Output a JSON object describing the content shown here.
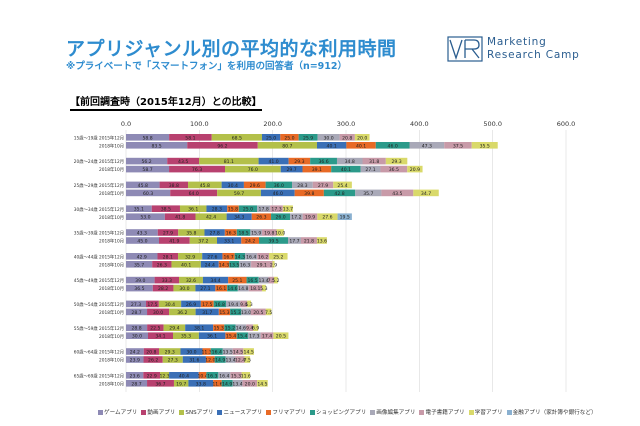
{
  "header": {
    "title": "アプリジャンル別の平均的な利用時間",
    "subtitle": "※プライベートで「スマートフォン」を利用の回答者（n=912）",
    "section_heading": "【前回調査時（2015年12月）との比較】"
  },
  "logo": {
    "line1": "Marketing",
    "line2": "Research Camp",
    "color": "#2a5d8f"
  },
  "chart_data": {
    "type": "bar",
    "orientation": "horizontal",
    "stacked": true,
    "xlim": [
      0,
      600
    ],
    "xticks": [
      "0.0",
      "100.0",
      "200.0",
      "300.0",
      "400.0",
      "500.0",
      "600.0"
    ],
    "xtick_values": [
      0,
      100,
      200,
      300,
      400,
      500,
      600
    ],
    "grid": true,
    "legend_position": "bottom",
    "categories": [
      "15歳～19歳 2015年12月",
      "2018年10月",
      "20歳～24歳 2015年12月",
      "2018年10月",
      "25歳～29歳 2015年12月",
      "2018年10月",
      "30歳～34歳 2015年12月",
      "2018年10月",
      "35歳～39歳 2015年12月",
      "2018年10月",
      "40歳～44歳 2015年12月",
      "2018年10月",
      "45歳～49歳 2015年12月",
      "2018年10月",
      "50歳～54歳 2015年12月",
      "2018年10月",
      "55歳～59歳 2015年12月",
      "2018年10月",
      "60歳～64歳 2015年12月",
      "2018年10月",
      "65歳～69歳 2015年12月",
      "2018年10月"
    ],
    "series": [
      {
        "name": "ゲームアプリ",
        "color": "#8e8ab5",
        "values": [
          58.8,
          83.5,
          56.2,
          58.7,
          45.8,
          60.3,
          35.1,
          53.0,
          43.3,
          45.0,
          42.9,
          35.7,
          39.0,
          36.5,
          27.3,
          28.7,
          28.8,
          30.0,
          24.2,
          23.9,
          23.6,
          28.7
        ]
      },
      {
        "name": "動画アプリ",
        "color": "#b8416f",
        "values": [
          58.1,
          96.2,
          43.5,
          76.3,
          38.8,
          64.0,
          38.5,
          41.8,
          27.9,
          41.9,
          28.1,
          26.3,
          33.3,
          28.2,
          17.5,
          30.0,
          22.5,
          34.1,
          20.8,
          26.2,
          22.9,
          36.7
        ]
      },
      {
        "name": "SNSアプリ",
        "color": "#b3c04a",
        "values": [
          68.5,
          80.7,
          81.1,
          76.0,
          45.8,
          59.7,
          36.1,
          42.4,
          35.8,
          37.2,
          32.9,
          40.1,
          32.6,
          30.0,
          30.4,
          36.2,
          29.4,
          35.3,
          29.3,
          27.3,
          12.3,
          19.7
        ]
      },
      {
        "name": "ニュースアプリ",
        "color": "#3a6fb6",
        "values": [
          25.0,
          40.1,
          41.0,
          29.7,
          30.4,
          46.0,
          28.3,
          34.3,
          27.8,
          33.1,
          27.6,
          24.4,
          34.4,
          27.1,
          26.9,
          31.7,
          38.1,
          36.1,
          30.0,
          31.6,
          40.4,
          33.8
        ]
      },
      {
        "name": "フリマアプリ",
        "color": "#e86a26",
        "values": [
          25.0,
          40.1,
          29.3,
          39.1,
          29.6,
          39.8,
          15.8,
          26.3,
          16.3,
          24.2,
          16.7,
          14.3,
          25.1,
          16.1,
          17.5,
          15.3,
          15.3,
          15.4,
          11.3,
          12.0,
          10.4,
          11.6
        ]
      },
      {
        "name": "ショッピングアプリ",
        "color": "#2b9a8a",
        "values": [
          25.9,
          46.0,
          36.6,
          40.1,
          36.0,
          42.8,
          25.0,
          26.0,
          18.5,
          39.5,
          14.3,
          13.5,
          16.5,
          14.6,
          16.8,
          15.3,
          15.2,
          15.4,
          16.4,
          14.9,
          16.3,
          14.9
        ]
      },
      {
        "name": "画像編集アプリ",
        "color": "#a9a9b8",
        "values": [
          30.0,
          47.3,
          34.8,
          27.1,
          28.3,
          35.7,
          17.8,
          17.2,
          15.9,
          17.7,
          16.4,
          16.3,
          13.4,
          14.8,
          19.4,
          13.0,
          14.6,
          17.3,
          13.5,
          13.4,
          16.4,
          13.4
        ]
      },
      {
        "name": "電子書籍アプリ",
        "color": "#c89aa8",
        "values": [
          20.8,
          37.5,
          31.8,
          36.5,
          27.9,
          43.5,
          17.3,
          19.9,
          19.8,
          21.8,
          16.2,
          29.1,
          7.5,
          18.1,
          9.4,
          20.5,
          9.4,
          17.4,
          14.5,
          12.4,
          15.3,
          20.0
        ]
      },
      {
        "name": "学習アプリ",
        "color": "#d9d96a",
        "values": [
          20.0,
          35.5,
          29.3,
          20.9,
          25.4,
          34.7,
          13.7,
          27.6,
          10.0,
          13.6,
          25.2,
          2.9,
          5.2,
          5.3,
          5.3,
          7.5,
          6.9,
          20.5,
          14.5,
          7.5,
          11.6,
          14.5
        ]
      },
      {
        "name": "金融アプリ（家計簿や銀行など）",
        "color": "#8ab0d0",
        "values": [
          0,
          0,
          0,
          0,
          0,
          0,
          0,
          19.5,
          0,
          0,
          0,
          0,
          0,
          0,
          0,
          0,
          0,
          0,
          0,
          0,
          0,
          0
        ]
      }
    ]
  }
}
